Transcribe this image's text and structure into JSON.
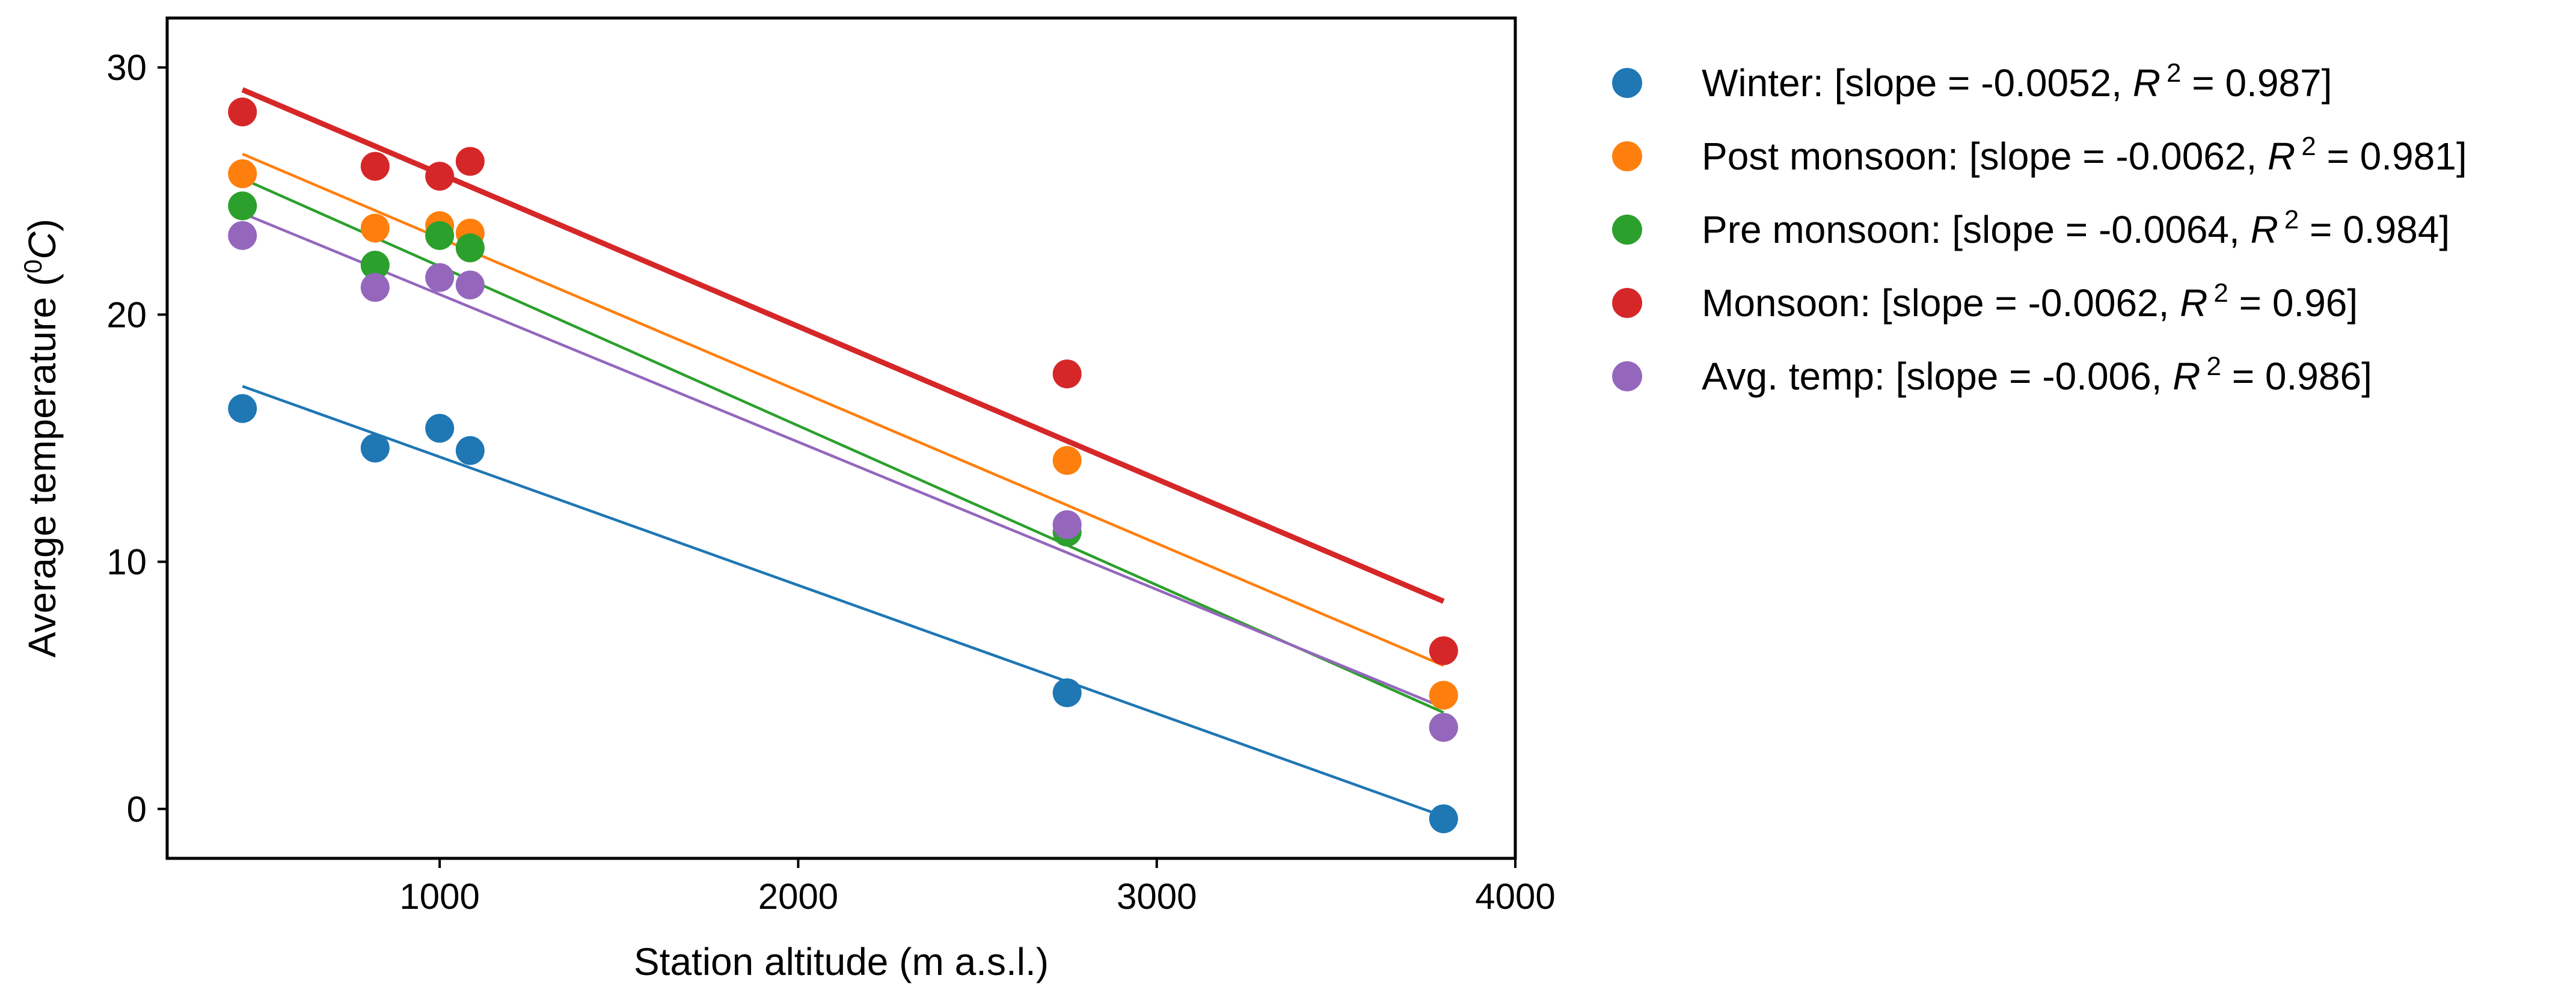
{
  "chart_data": {
    "type": "scatter",
    "xlabel": "Station altitude (m a.s.l.)",
    "ylabel_prefix": "Average temperature (",
    "ylabel_sup": "0",
    "ylabel_unit": "C",
    "ylabel_suffix": ")",
    "xlim": [
      240,
      4000
    ],
    "ylim": [
      -2,
      32
    ],
    "x_ticks": [
      1000,
      2000,
      3000,
      4000
    ],
    "x_tick_labels": [
      "1000",
      "2000",
      "3000",
      "4000"
    ],
    "y_ticks": [
      0,
      10,
      20,
      30
    ],
    "y_tick_labels": [
      "0",
      "10",
      "20",
      "30"
    ],
    "legend_position": "outside-right",
    "series": [
      {
        "name": "Winter",
        "color": "#1f77b4",
        "legend_prefix": "Winter:  [slope = -0.0052, ",
        "legend_r": "R",
        "legend_sup": "2",
        "legend_suffix": " = 0.987]",
        "line_width": "thin",
        "points": [
          [
            450,
            16.2
          ],
          [
            820,
            14.6
          ],
          [
            1000,
            15.4
          ],
          [
            1085,
            14.5
          ],
          [
            2750,
            4.7
          ],
          [
            3800,
            -0.4
          ]
        ],
        "fit": [
          [
            450,
            17.1
          ],
          [
            3800,
            -0.3
          ]
        ]
      },
      {
        "name": "Post monsoon",
        "color": "#ff7f0e",
        "legend_prefix": "Post monsoon: [slope = -0.0062, ",
        "legend_r": "R",
        "legend_sup": "2",
        "legend_suffix": " = 0.981]",
        "line_width": "thin",
        "points": [
          [
            450,
            25.7
          ],
          [
            820,
            23.5
          ],
          [
            1000,
            23.6
          ],
          [
            1085,
            23.3
          ],
          [
            2750,
            14.1
          ],
          [
            3800,
            4.6
          ]
        ],
        "fit": [
          [
            450,
            26.5
          ],
          [
            3800,
            5.8
          ]
        ]
      },
      {
        "name": "Pre monsoon",
        "color": "#2ca02c",
        "legend_prefix": "Pre monsoon: [slope = -0.0064, ",
        "legend_r": "R",
        "legend_sup": "2",
        "legend_suffix": " = 0.984]",
        "line_width": "thin",
        "points": [
          [
            450,
            24.4
          ],
          [
            820,
            22.0
          ],
          [
            1000,
            23.2
          ],
          [
            1085,
            22.7
          ],
          [
            2750,
            11.2
          ],
          [
            3800,
            3.3
          ]
        ],
        "fit": [
          [
            450,
            25.5
          ],
          [
            3800,
            3.9
          ]
        ]
      },
      {
        "name": "Monsoon",
        "color": "#d62728",
        "legend_prefix": "Monsoon: [slope = -0.0062, ",
        "legend_r": "R",
        "legend_sup": "2",
        "legend_suffix": " = 0.96]",
        "line_width": "thick",
        "points": [
          [
            450,
            28.2
          ],
          [
            820,
            26.0
          ],
          [
            1000,
            25.6
          ],
          [
            1085,
            26.2
          ],
          [
            2750,
            17.6
          ],
          [
            3800,
            6.4
          ]
        ],
        "fit": [
          [
            450,
            29.1
          ],
          [
            3800,
            8.4
          ]
        ]
      },
      {
        "name": "Avg. temp",
        "color": "#9467bd",
        "legend_prefix": "Avg. temp: [slope = -0.006, ",
        "legend_r": "R",
        "legend_sup": "2",
        "legend_suffix": " = 0.986]",
        "line_width": "thin",
        "points": [
          [
            450,
            23.2
          ],
          [
            820,
            21.1
          ],
          [
            1000,
            21.5
          ],
          [
            1085,
            21.2
          ],
          [
            2750,
            11.5
          ],
          [
            3800,
            3.3
          ]
        ],
        "fit": [
          [
            450,
            24.1
          ],
          [
            3800,
            4.1
          ]
        ]
      }
    ]
  }
}
